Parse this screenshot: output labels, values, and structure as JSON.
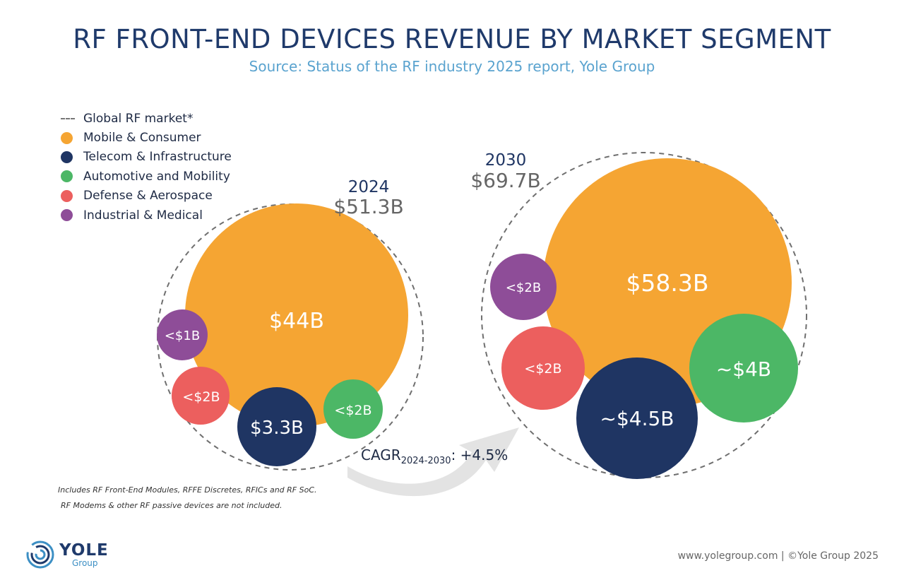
{
  "title": "RF FRONT-END DEVICES REVENUE BY MARKET SEGMENT",
  "subtitle": "Source: Status of the RF industry 2025 report, Yole Group",
  "legend": {
    "global": "Global RF market*",
    "items": [
      {
        "label": "Mobile & Consumer",
        "color": "#f5a533"
      },
      {
        "label": "Telecom & Infrastructure",
        "color": "#1f3563"
      },
      {
        "label": "Automotive and Mobility",
        "color": "#4cb766"
      },
      {
        "label": "Defense & Aerospace",
        "color": "#ec5f5e"
      },
      {
        "label": "Industrial & Medical",
        "color": "#8e4d98"
      }
    ]
  },
  "chart_data": {
    "type": "bubble",
    "title": "RF FRONT-END DEVICES REVENUE BY MARKET SEGMENT",
    "unit": "$B",
    "years": [
      {
        "year": "2024",
        "total_label": "$51.3B",
        "total": 51.3,
        "segments": [
          {
            "segment": "Mobile & Consumer",
            "label": "$44B",
            "value": 44
          },
          {
            "segment": "Telecom & Infrastructure",
            "label": "$3.3B",
            "value": 3.3
          },
          {
            "segment": "Automotive and Mobility",
            "label": "<$2B",
            "value": 2
          },
          {
            "segment": "Defense & Aerospace",
            "label": "<$2B",
            "value": 2
          },
          {
            "segment": "Industrial & Medical",
            "label": "<$1B",
            "value": 1
          }
        ]
      },
      {
        "year": "2030",
        "total_label": "$69.7B",
        "total": 69.7,
        "segments": [
          {
            "segment": "Mobile & Consumer",
            "label": "$58.3B",
            "value": 58.3
          },
          {
            "segment": "Telecom & Infrastructure",
            "label": "~$4.5B",
            "value": 4.5
          },
          {
            "segment": "Automotive and Mobility",
            "label": "~$4B",
            "value": 4
          },
          {
            "segment": "Defense & Aerospace",
            "label": "<$2B",
            "value": 2
          },
          {
            "segment": "Industrial & Medical",
            "label": "<$2B",
            "value": 2
          }
        ]
      }
    ],
    "cagr": {
      "prefix": "CAGR",
      "period": "2024-2030",
      "value": ": +4.5%"
    }
  },
  "footnotes": [
    "Includes RF Front-End Modules, RFFE Discretes, RFICs and RF SoC.",
    "RF Modems & other RF passive devices are not included."
  ],
  "logo": {
    "name": "YOLE",
    "sub": "Group"
  },
  "footer": "www.yolegroup.com | ©Yole Group 2025"
}
